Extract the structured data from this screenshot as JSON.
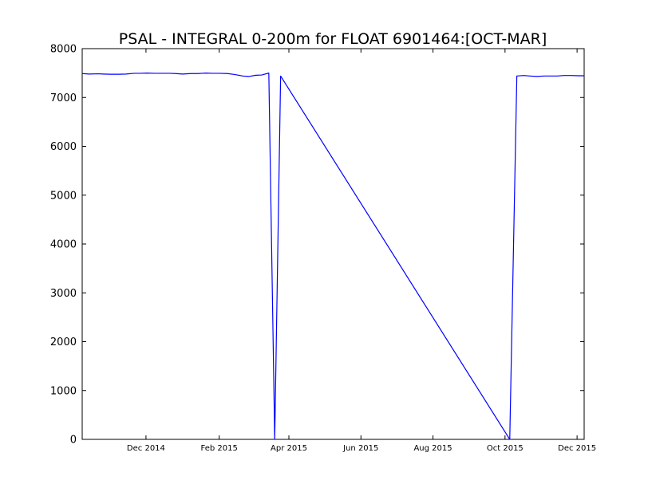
{
  "chart_data": {
    "type": "line",
    "title": "PSAL - INTEGRAL 0-200m for FLOAT 6901464:[OCT-MAR]",
    "xlabel": "",
    "ylabel": "",
    "x_range": [
      "2014-10-08",
      "2015-12-07"
    ],
    "ylim": [
      0,
      8000
    ],
    "y_ticks": [
      0,
      1000,
      2000,
      3000,
      4000,
      5000,
      6000,
      7000,
      8000
    ],
    "x_ticks": [
      {
        "date": "2014-12-01",
        "label": "Dec 2014"
      },
      {
        "date": "2015-02-01",
        "label": "Feb 2015"
      },
      {
        "date": "2015-04-01",
        "label": "Apr 2015"
      },
      {
        "date": "2015-06-01",
        "label": "Jun 2015"
      },
      {
        "date": "2015-08-01",
        "label": "Aug 2015"
      },
      {
        "date": "2015-10-01",
        "label": "Oct 2015"
      },
      {
        "date": "2015-12-01",
        "label": "Dec 2015"
      }
    ],
    "grid": false,
    "series": [
      {
        "color": "#0000ff",
        "x": [
          "2014-10-08",
          "2014-10-14",
          "2014-10-21",
          "2014-10-26",
          "2014-11-01",
          "2014-11-08",
          "2014-11-14",
          "2014-11-21",
          "2014-11-26",
          "2014-12-02",
          "2014-12-08",
          "2014-12-14",
          "2014-12-21",
          "2014-12-26",
          "2015-01-01",
          "2015-01-08",
          "2015-01-14",
          "2015-01-21",
          "2015-01-26",
          "2015-02-01",
          "2015-02-08",
          "2015-02-14",
          "2015-02-21",
          "2015-02-26",
          "2015-03-04",
          "2015-03-09",
          "2015-03-15",
          "2015-03-20",
          "2015-03-25",
          "2015-10-05",
          "2015-10-11",
          "2015-10-17",
          "2015-10-22",
          "2015-10-28",
          "2015-11-03",
          "2015-11-09",
          "2015-11-14",
          "2015-11-20",
          "2015-11-26",
          "2015-12-02",
          "2015-12-07"
        ],
        "y": [
          7490,
          7480,
          7485,
          7480,
          7475,
          7475,
          7480,
          7495,
          7495,
          7500,
          7495,
          7495,
          7495,
          7490,
          7480,
          7490,
          7490,
          7500,
          7495,
          7495,
          7490,
          7470,
          7440,
          7430,
          7455,
          7460,
          7500,
          0,
          7440,
          0,
          7440,
          7450,
          7440,
          7430,
          7440,
          7440,
          7440,
          7450,
          7450,
          7445,
          7445
        ]
      }
    ]
  }
}
